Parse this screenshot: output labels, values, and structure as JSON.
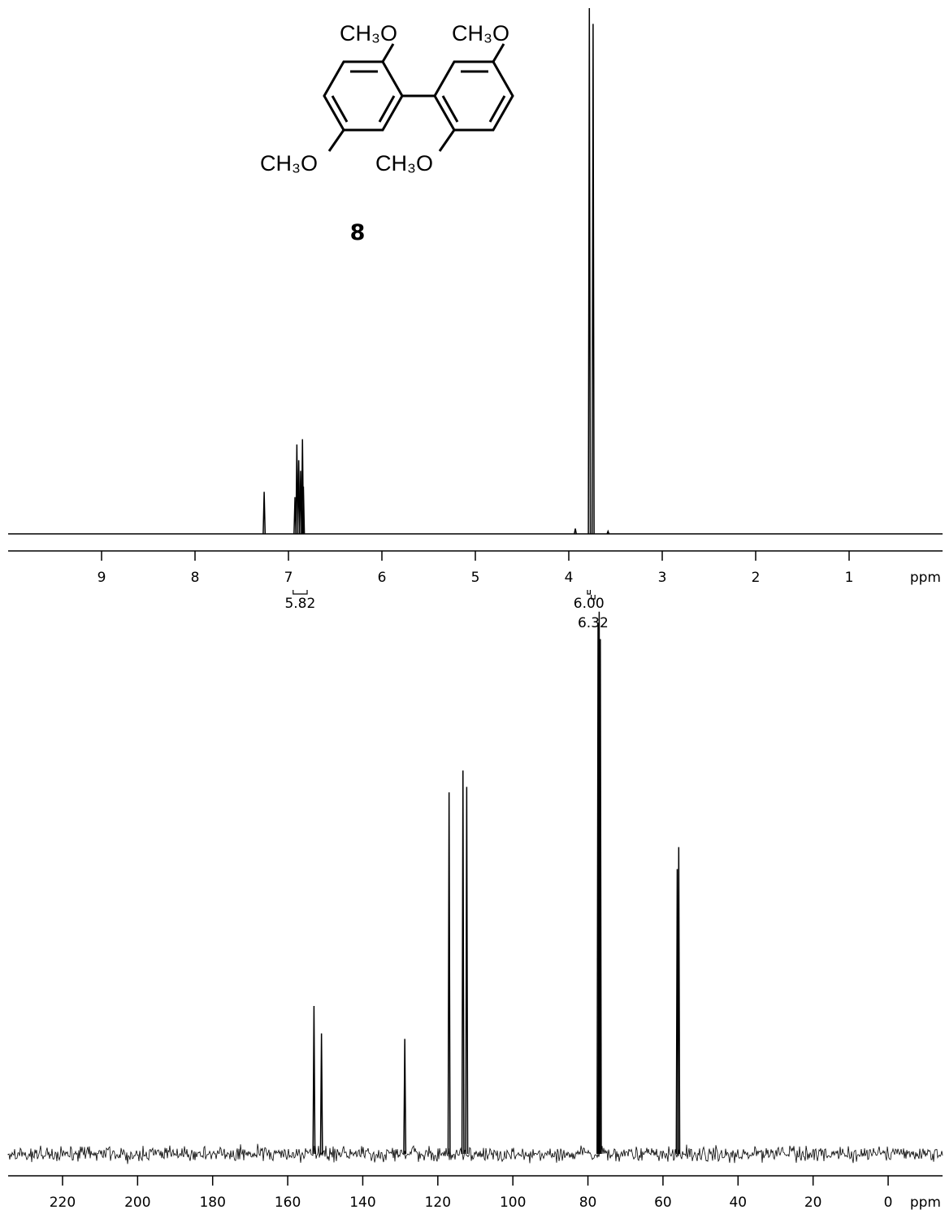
{
  "structure": {
    "substituents": [
      "CH₃O",
      "CH₃O",
      "CH₃O",
      "CH₃O"
    ],
    "compound": "8"
  },
  "chart_data": [
    {
      "type": "spectrum",
      "x_label": "ppm",
      "x": [
        7.26,
        6.93,
        6.91,
        6.89,
        6.87,
        6.85,
        6.84,
        3.93,
        3.78,
        3.74,
        3.58
      ],
      "values": [
        8,
        7,
        17,
        14,
        12,
        18,
        9,
        1,
        100,
        97,
        0.5
      ],
      "xlim": [
        10,
        0
      ],
      "xticks": [
        9,
        8,
        7,
        6,
        5,
        4,
        3,
        2,
        1
      ],
      "ylim": [
        0,
        100
      ],
      "color": "#000000",
      "integrals": [
        {
          "range": [
            6.95,
            6.8
          ],
          "label": "5.82"
        },
        {
          "range": [
            3.8,
            3.77
          ],
          "label": "6.00"
        },
        {
          "range": [
            3.76,
            3.72
          ],
          "label": "6.32"
        }
      ]
    },
    {
      "type": "spectrum",
      "x_label": "ppm",
      "x": [
        153.0,
        151.0,
        128.8,
        117.0,
        113.3,
        112.3,
        77.3,
        77.0,
        76.7,
        56.2,
        55.8
      ],
      "values": [
        27,
        22,
        21,
        66,
        70,
        67,
        97,
        99,
        94,
        52,
        56
      ],
      "xlim": [
        234.5,
        -14.5
      ],
      "xticks": [
        220,
        200,
        180,
        160,
        140,
        120,
        100,
        80,
        60,
        40,
        20,
        0
      ],
      "ylim": [
        0,
        100
      ],
      "color": "#000000",
      "noise": true
    }
  ]
}
